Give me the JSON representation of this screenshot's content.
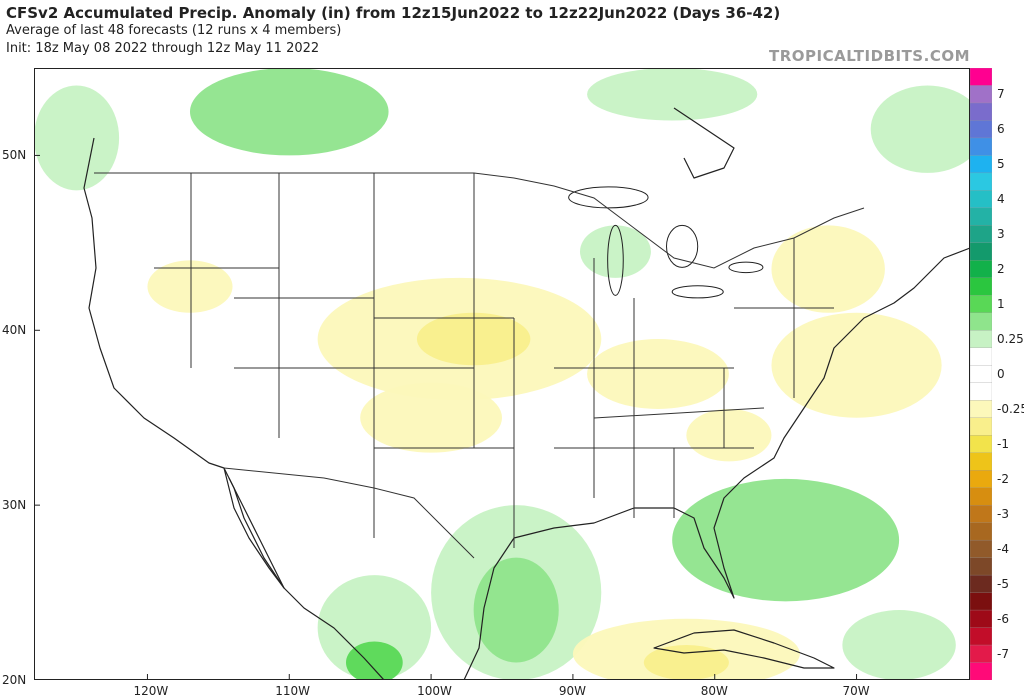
{
  "header": {
    "title": "CFSv2 Accumulated Precip. Anomaly (in) from 12z15Jun2022 to 12z22Jun2022 (Days 36-42)",
    "subtitle": "Average of last 48 forecasts (12 runs x 4 members)",
    "init": "Init: 18z May 08 2022 through 12z May 11 2022"
  },
  "brand": "TROPICALTIDBITS.COM",
  "map": {
    "lat_labels": [
      {
        "text": "50N",
        "lat": 50
      },
      {
        "text": "40N",
        "lat": 40
      },
      {
        "text": "30N",
        "lat": 30
      },
      {
        "text": "20N",
        "lat": 20
      }
    ],
    "lon_labels": [
      {
        "text": "120W",
        "lon": -120
      },
      {
        "text": "110W",
        "lon": -110
      },
      {
        "text": "100W",
        "lon": -100
      },
      {
        "text": "90W",
        "lon": -90
      },
      {
        "text": "80W",
        "lon": -80
      },
      {
        "text": "70W",
        "lon": -70
      }
    ],
    "lon_range": [
      -128,
      -62
    ],
    "lat_range": [
      20,
      55
    ],
    "anomaly_regions": [
      {
        "name": "canada-prairies-wet",
        "level": 0.5,
        "lon": -110,
        "lat": 52.5,
        "rlon": 7,
        "rlat": 2.5
      },
      {
        "name": "hudson-bay-wet",
        "level": 0.25,
        "lon": -83,
        "lat": 53.5,
        "rlon": 6,
        "rlat": 1.5
      },
      {
        "name": "bc-coast-wet",
        "level": 0.25,
        "lon": -125,
        "lat": 51,
        "rlon": 3,
        "rlat": 3
      },
      {
        "name": "quebec-wet",
        "level": 0.25,
        "lon": -65,
        "lat": 51.5,
        "rlon": 4,
        "rlat": 2.5
      },
      {
        "name": "great-lakes-wet",
        "level": 0.25,
        "lon": -87,
        "lat": 44.5,
        "rlon": 2.5,
        "rlat": 1.5
      },
      {
        "name": "gulf-mexico-wet",
        "level": 0.25,
        "lon": -94,
        "lat": 25,
        "rlon": 6,
        "rlat": 5
      },
      {
        "name": "gulf-mexico-wetter",
        "level": 0.5,
        "lon": -94,
        "lat": 24,
        "rlon": 3,
        "rlat": 3
      },
      {
        "name": "mexico-wet",
        "level": 0.25,
        "lon": -104,
        "lat": 23,
        "rlon": 4,
        "rlat": 3
      },
      {
        "name": "mexico-wetter",
        "level": 1,
        "lon": -104,
        "lat": 21,
        "rlon": 2,
        "rlat": 1.2
      },
      {
        "name": "atlantic-bahamas-wet",
        "level": 0.5,
        "lon": -75,
        "lat": 28,
        "rlon": 8,
        "rlat": 3.5
      },
      {
        "name": "caribbean-east-wet",
        "level": 0.25,
        "lon": -67,
        "lat": 22,
        "rlon": 4,
        "rlat": 2
      },
      {
        "name": "plains-dry",
        "level": -0.25,
        "lon": -98,
        "lat": 39.5,
        "rlon": 10,
        "rlat": 3.5
      },
      {
        "name": "kansas-dry",
        "level": -0.5,
        "lon": -97,
        "lat": 39.5,
        "rlon": 4,
        "rlat": 1.5
      },
      {
        "name": "southern-plains-dry",
        "level": -0.25,
        "lon": -100,
        "lat": 35,
        "rlon": 5,
        "rlat": 2
      },
      {
        "name": "ohio-valley-dry",
        "level": -0.25,
        "lon": -84,
        "lat": 37.5,
        "rlon": 5,
        "rlat": 2
      },
      {
        "name": "northeast-dry",
        "level": -0.25,
        "lon": -72,
        "lat": 43.5,
        "rlon": 4,
        "rlat": 2.5
      },
      {
        "name": "mid-atlantic-dry",
        "level": -0.25,
        "lon": -70,
        "lat": 38,
        "rlon": 6,
        "rlat": 3
      },
      {
        "name": "carolinas-dry",
        "level": -0.25,
        "lon": -79,
        "lat": 34,
        "rlon": 3,
        "rlat": 1.5
      },
      {
        "name": "northwest-dry",
        "level": -0.25,
        "lon": -117,
        "lat": 42.5,
        "rlon": 3,
        "rlat": 1.5
      },
      {
        "name": "cuba-dry",
        "level": -0.25,
        "lon": -82,
        "lat": 21.5,
        "rlon": 8,
        "rlat": 2
      },
      {
        "name": "cuba-drier",
        "level": -0.5,
        "lon": -82,
        "lat": 21,
        "rlon": 3,
        "rlat": 1
      }
    ],
    "lakes": [
      {
        "name": "lake-superior",
        "lon": -87.5,
        "lat": 47.6,
        "rlon": 2.8,
        "rlat": 0.6
      },
      {
        "name": "lake-michigan",
        "lon": -87,
        "lat": 44,
        "rlon": 0.55,
        "rlat": 2.0
      },
      {
        "name": "lake-huron",
        "lon": -82.3,
        "lat": 44.8,
        "rlon": 1.1,
        "rlat": 1.2
      },
      {
        "name": "lake-erie",
        "lon": -81.2,
        "lat": 42.2,
        "rlon": 1.8,
        "rlat": 0.35
      },
      {
        "name": "lake-ontario",
        "lon": -77.8,
        "lat": 43.6,
        "rlon": 1.2,
        "rlat": 0.3
      }
    ]
  },
  "legend": {
    "levels": [
      {
        "label": "",
        "color": "#ff0090"
      },
      {
        "label": "7",
        "color": "#a071c8"
      },
      {
        "label": "",
        "color": "#7a6ccc"
      },
      {
        "label": "6",
        "color": "#5f76d6"
      },
      {
        "label": "",
        "color": "#3f90e6"
      },
      {
        "label": "5",
        "color": "#1eb2f0"
      },
      {
        "label": "",
        "color": "#2bc8e2"
      },
      {
        "label": "4",
        "color": "#25bfc6"
      },
      {
        "label": "",
        "color": "#23b2a6"
      },
      {
        "label": "3",
        "color": "#1ea488"
      },
      {
        "label": "",
        "color": "#139a6c"
      },
      {
        "label": "2",
        "color": "#12b14a"
      },
      {
        "label": "",
        "color": "#2bc63f"
      },
      {
        "label": "1",
        "color": "#59d856"
      },
      {
        "label": "",
        "color": "#8fe48c"
      },
      {
        "label": "0.25",
        "color": "#c7f2c4"
      },
      {
        "label": "",
        "color": "#ffffff"
      },
      {
        "label": "0",
        "color": "#ffffff"
      },
      {
        "label": "",
        "color": "#ffffff"
      },
      {
        "label": "-0.25",
        "color": "#fcf8bb"
      },
      {
        "label": "",
        "color": "#f9ef8c"
      },
      {
        "label": "-1",
        "color": "#f2e34b"
      },
      {
        "label": "",
        "color": "#eec419"
      },
      {
        "label": "-2",
        "color": "#eaa90e"
      },
      {
        "label": "",
        "color": "#d78e10"
      },
      {
        "label": "-3",
        "color": "#c0771a"
      },
      {
        "label": "",
        "color": "#a86820"
      },
      {
        "label": "-4",
        "color": "#915a2a"
      },
      {
        "label": "",
        "color": "#7d4828"
      },
      {
        "label": "-5",
        "color": "#6c2a1f"
      },
      {
        "label": "",
        "color": "#7b0f0f"
      },
      {
        "label": "-6",
        "color": "#9e0a18"
      },
      {
        "label": "",
        "color": "#c20d29"
      },
      {
        "label": "-7",
        "color": "#e31a4a"
      },
      {
        "label": "",
        "color": "#ff0a78"
      }
    ]
  }
}
